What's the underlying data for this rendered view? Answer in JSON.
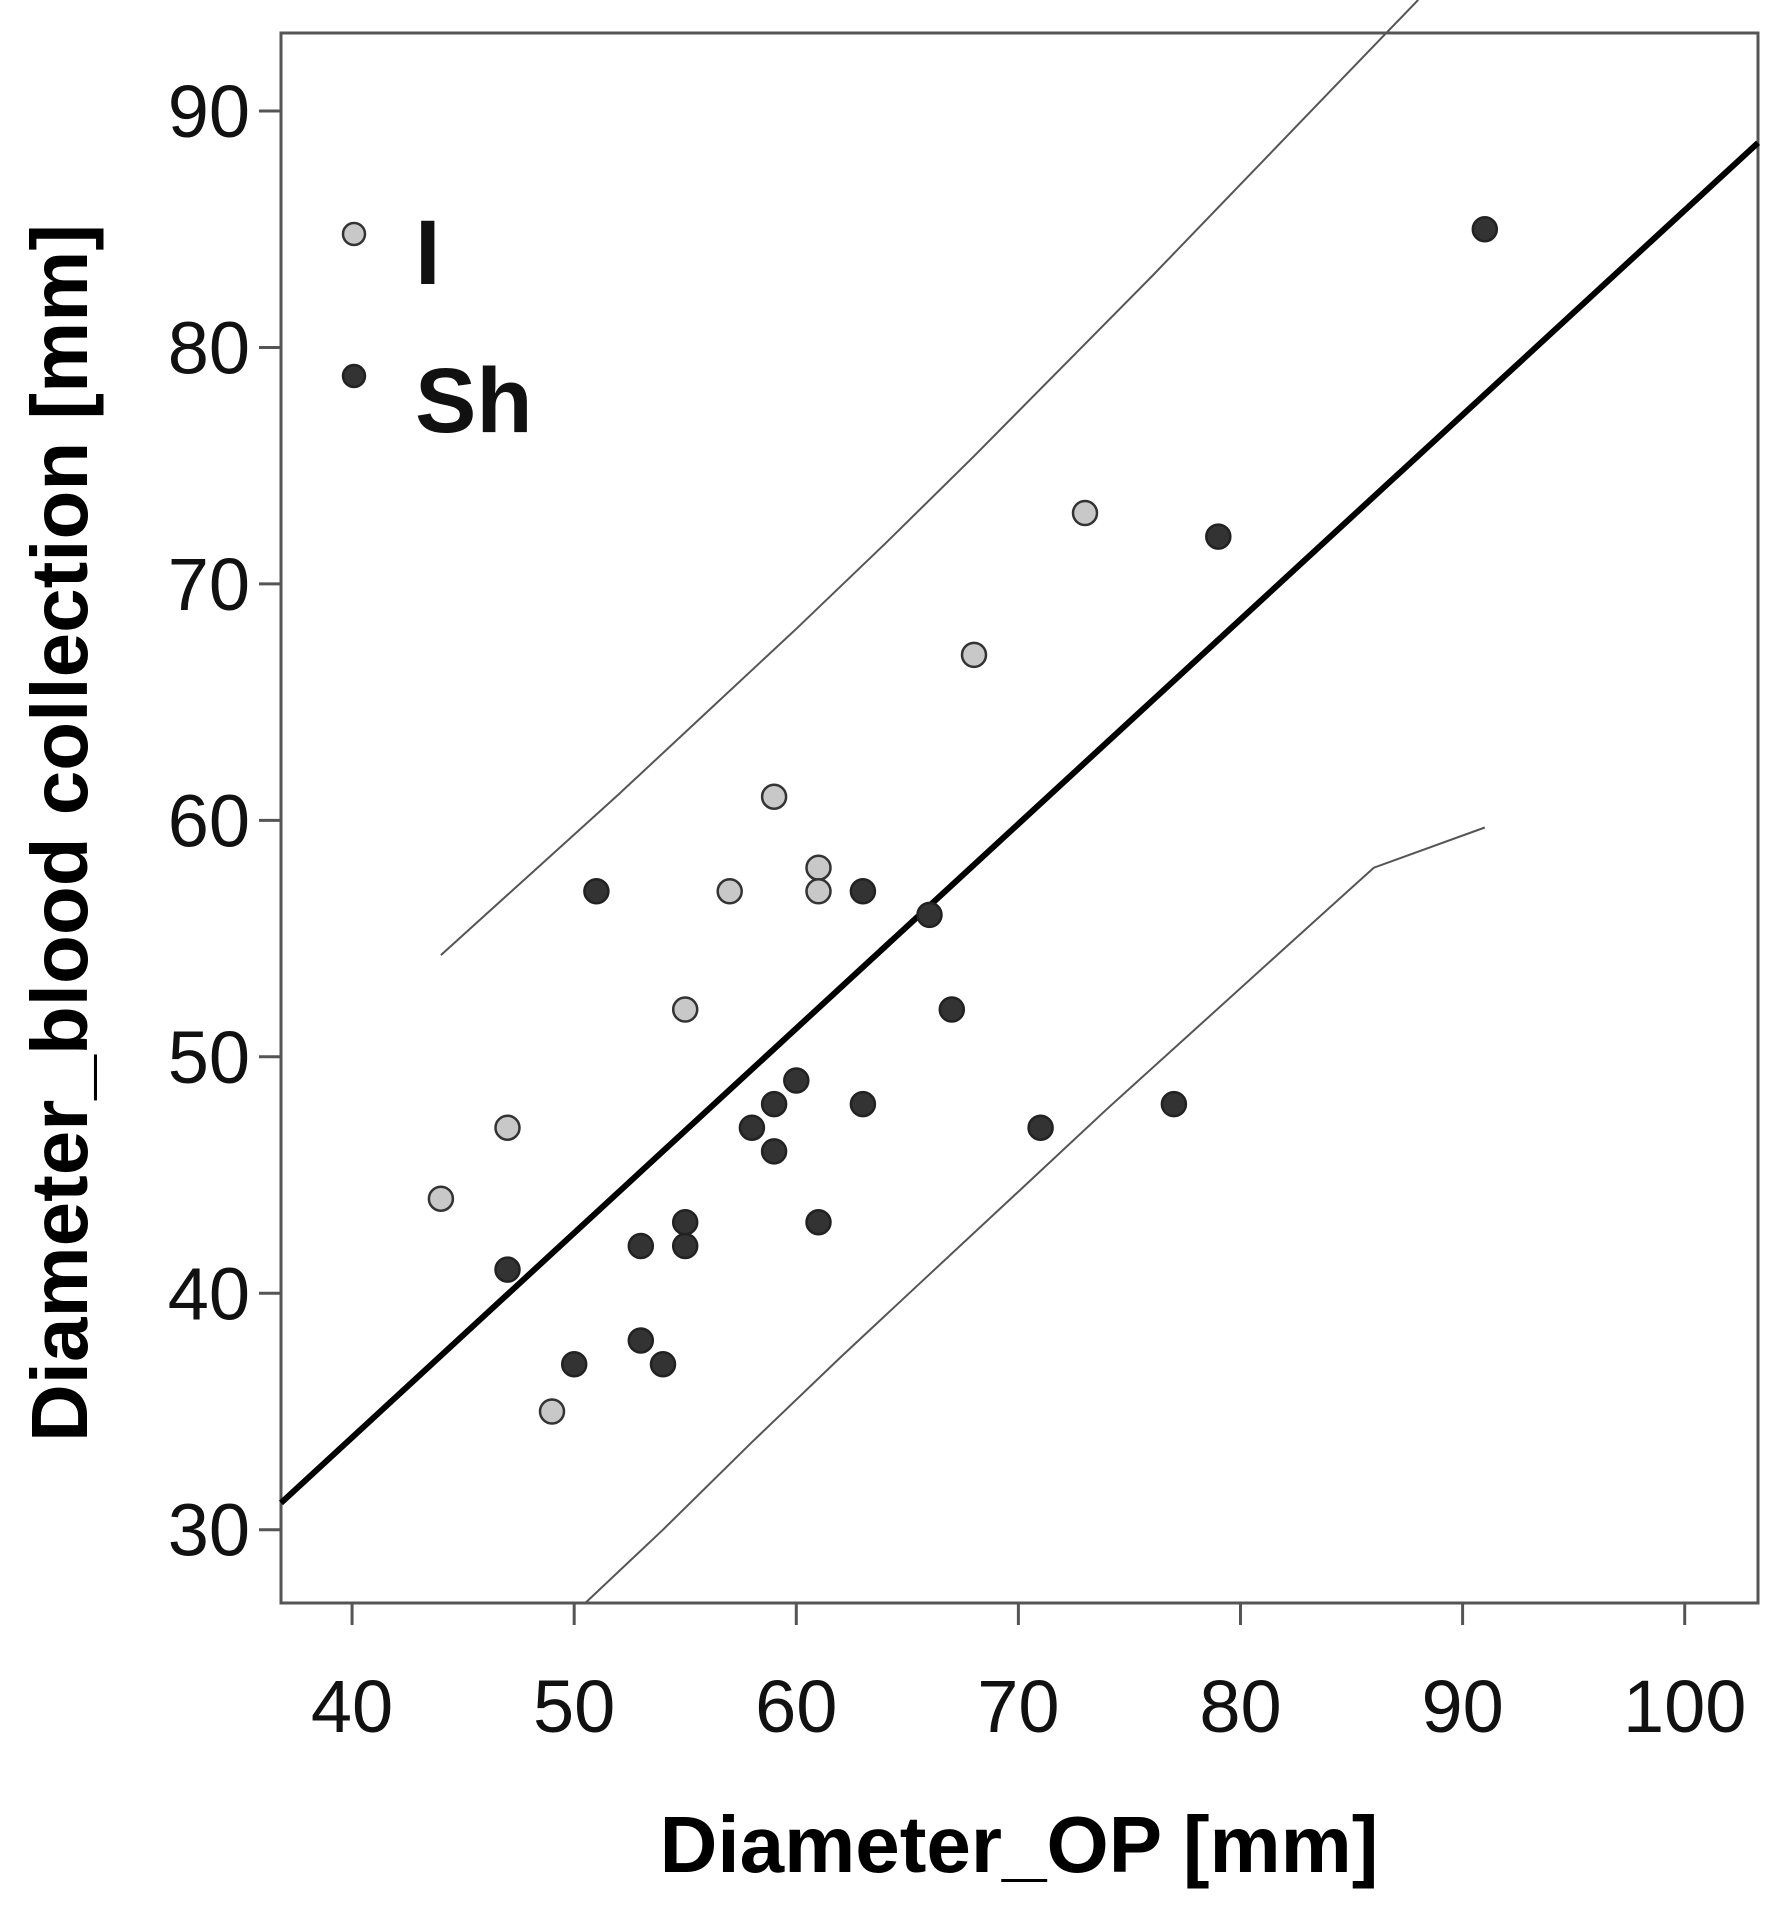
{
  "chart_data": {
    "type": "scatter",
    "title": "",
    "xlabel": "Diameter_OP [mm]",
    "ylabel": "Diameter_blood collection [mm]",
    "xlim": [
      36.8,
      103.3
    ],
    "ylim": [
      26.9,
      93.3
    ],
    "xticks": [
      40,
      50,
      60,
      70,
      80,
      90,
      100
    ],
    "yticks": [
      30,
      40,
      50,
      60,
      70,
      80,
      90
    ],
    "grid": false,
    "legend_position": "top-left",
    "colors": {
      "I": "#c8c8c8",
      "Sh": "#333333",
      "fit_line": "#000000",
      "band_line": "#555555"
    },
    "series": [
      {
        "name": "I",
        "points": [
          [
            44,
            44
          ],
          [
            47,
            47
          ],
          [
            49,
            35
          ],
          [
            55,
            52
          ],
          [
            57,
            57
          ],
          [
            59,
            61
          ],
          [
            61,
            58
          ],
          [
            61,
            57
          ],
          [
            68,
            67
          ],
          [
            73,
            73
          ]
        ]
      },
      {
        "name": "Sh",
        "points": [
          [
            47,
            41
          ],
          [
            50,
            37
          ],
          [
            51,
            57
          ],
          [
            53,
            42
          ],
          [
            53,
            38
          ],
          [
            54,
            37
          ],
          [
            55,
            43
          ],
          [
            55,
            42
          ],
          [
            58,
            47
          ],
          [
            59,
            48
          ],
          [
            59,
            46
          ],
          [
            60,
            49
          ],
          [
            61,
            43
          ],
          [
            63,
            57
          ],
          [
            63,
            48
          ],
          [
            66,
            56
          ],
          [
            67,
            52
          ],
          [
            71,
            47
          ],
          [
            77,
            48
          ],
          [
            79,
            72
          ],
          [
            91,
            85
          ]
        ]
      }
    ],
    "fit_line": {
      "slope": 0.865,
      "intercept": -0.7
    },
    "prediction_band": {
      "upper": [
        [
          44,
          54.3
        ],
        [
          48,
          57.7
        ],
        [
          52,
          61.1
        ],
        [
          56,
          64.6
        ],
        [
          60,
          68.1
        ],
        [
          64,
          71.7
        ],
        [
          68,
          75.4
        ],
        [
          72,
          79.2
        ],
        [
          76,
          83.0
        ],
        [
          80,
          86.9
        ],
        [
          84,
          90.8
        ],
        [
          88,
          94.7
        ]
      ],
      "lower": [
        [
          50.5,
          26.9
        ],
        [
          54,
          30.0
        ],
        [
          58,
          33.7
        ],
        [
          62,
          37.3
        ],
        [
          66,
          40.8
        ],
        [
          70,
          44.3
        ],
        [
          74,
          47.8
        ],
        [
          78,
          51.2
        ],
        [
          82,
          54.6
        ],
        [
          86,
          58.0
        ],
        [
          91,
          59.7
        ]
      ]
    }
  }
}
